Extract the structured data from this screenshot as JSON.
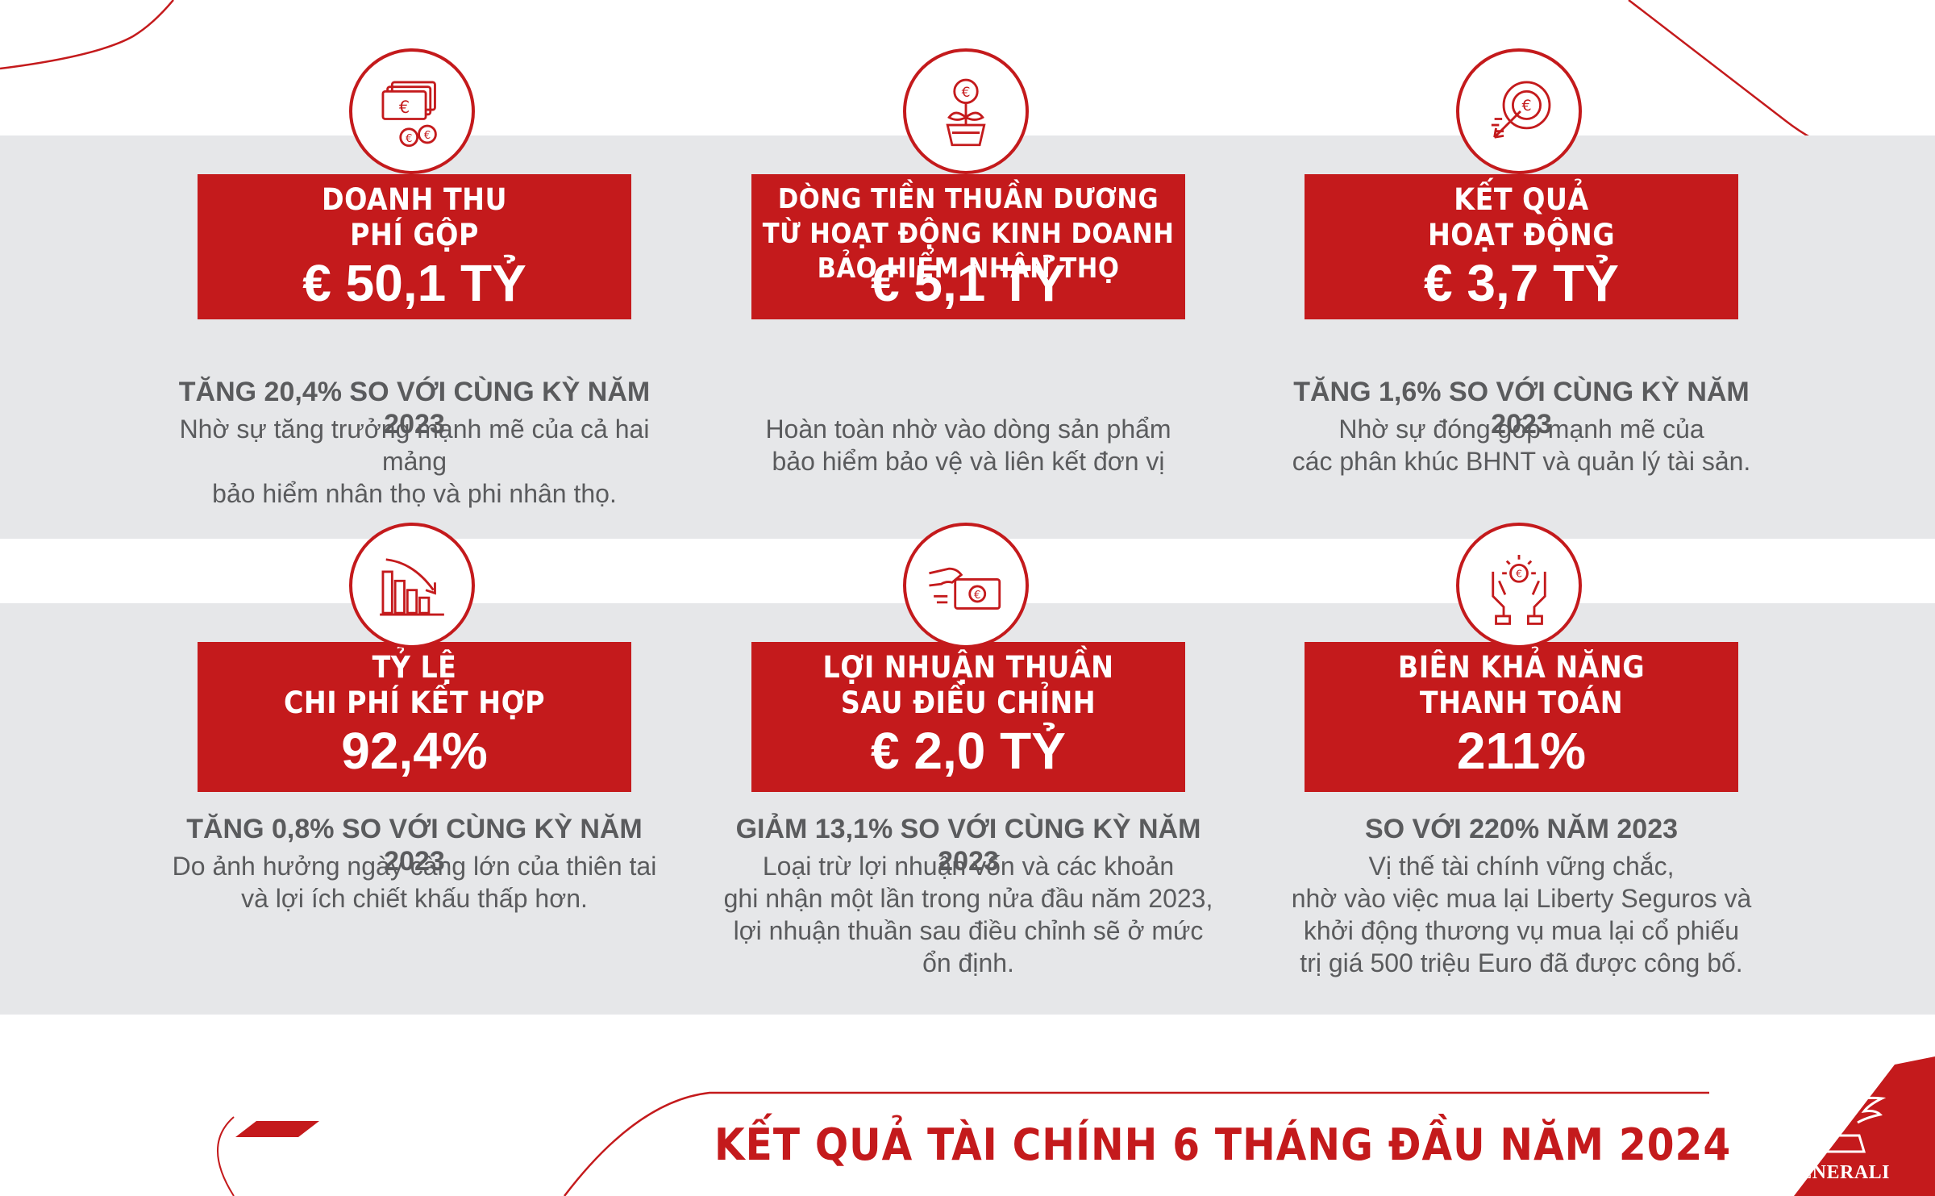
{
  "colors": {
    "brand_red": "#c41a1c",
    "gray_band": "#e6e7e9",
    "text_gray": "#5a5b5d"
  },
  "cards": [
    {
      "icon": "euro-cash-icon",
      "title": "DOANH THU\nPHÍ GỘP",
      "value": "€ 50,1 TỶ",
      "headline": "TĂNG 20,4% SO VỚI CÙNG KỲ NĂM 2023",
      "body": "Nhờ sự tăng trưởng mạnh mẽ của cả hai mảng\nbảo hiểm nhân thọ và phi nhân thọ."
    },
    {
      "icon": "euro-plant-icon",
      "title": "DÒNG TIỀN THUẦN DƯƠNG\nTỪ HOẠT ĐỘNG KINH DOANH\nBẢO HIỂM NHÂN THỌ",
      "value": "€ 5,1 TỶ",
      "headline": "",
      "body": "Hoàn toàn nhờ vào dòng sản phẩm\nbảo hiểm bảo vệ và liên kết đơn vị"
    },
    {
      "icon": "euro-target-icon",
      "title": "KẾT QUẢ\nHOẠT ĐỘNG",
      "value": "€ 3,7 TỶ",
      "headline": "TĂNG 1,6% SO VỚI CÙNG KỲ NĂM 2023",
      "body": "Nhờ sự đóng góp mạnh mẽ của\ncác phân khúc BHNT và quản lý tài sản."
    },
    {
      "icon": "declining-chart-icon",
      "title": "TỶ LỆ\nCHI PHÍ KẾT HỢP",
      "value": "92,4%",
      "headline": "TĂNG 0,8% SO VỚI CÙNG KỲ NĂM 2023",
      "body": "Do ảnh hưởng ngày càng lớn của thiên tai\nvà lợi ích chiết khấu thấp hơn."
    },
    {
      "icon": "hand-euro-bill-icon",
      "title": "LỢI NHUẬN THUẦN\nSAU ĐIỀU CHỈNH",
      "value": "€ 2,0 TỶ",
      "headline": "GIẢM 13,1% SO VỚI CÙNG KỲ NĂM 2023",
      "body": "Loại trừ lợi nhuận vốn và các khoản\nghi nhận một lần trong nửa đầu năm 2023,\nlợi nhuận thuần sau điều chỉnh sẽ ở mức ổn định."
    },
    {
      "icon": "hands-euro-icon",
      "title": "BIÊN KHẢ NĂNG\nTHANH TOÁN",
      "value": "211%",
      "headline": "SO VỚI 220% NĂM 2023",
      "body": "Vị thế tài chính vững chắc,\nnhờ vào việc mua lại Liberty Seguros và\nkhởi động thương vụ mua lại cổ phiếu\ntrị giá 500 triệu Euro đã được công bố."
    }
  ],
  "footer": {
    "title": "KẾT QUẢ TÀI CHÍNH 6 THÁNG ĐẦU NĂM 2024",
    "logo_text": "GENERALI",
    "logo_icon": "winged-lion-icon"
  }
}
